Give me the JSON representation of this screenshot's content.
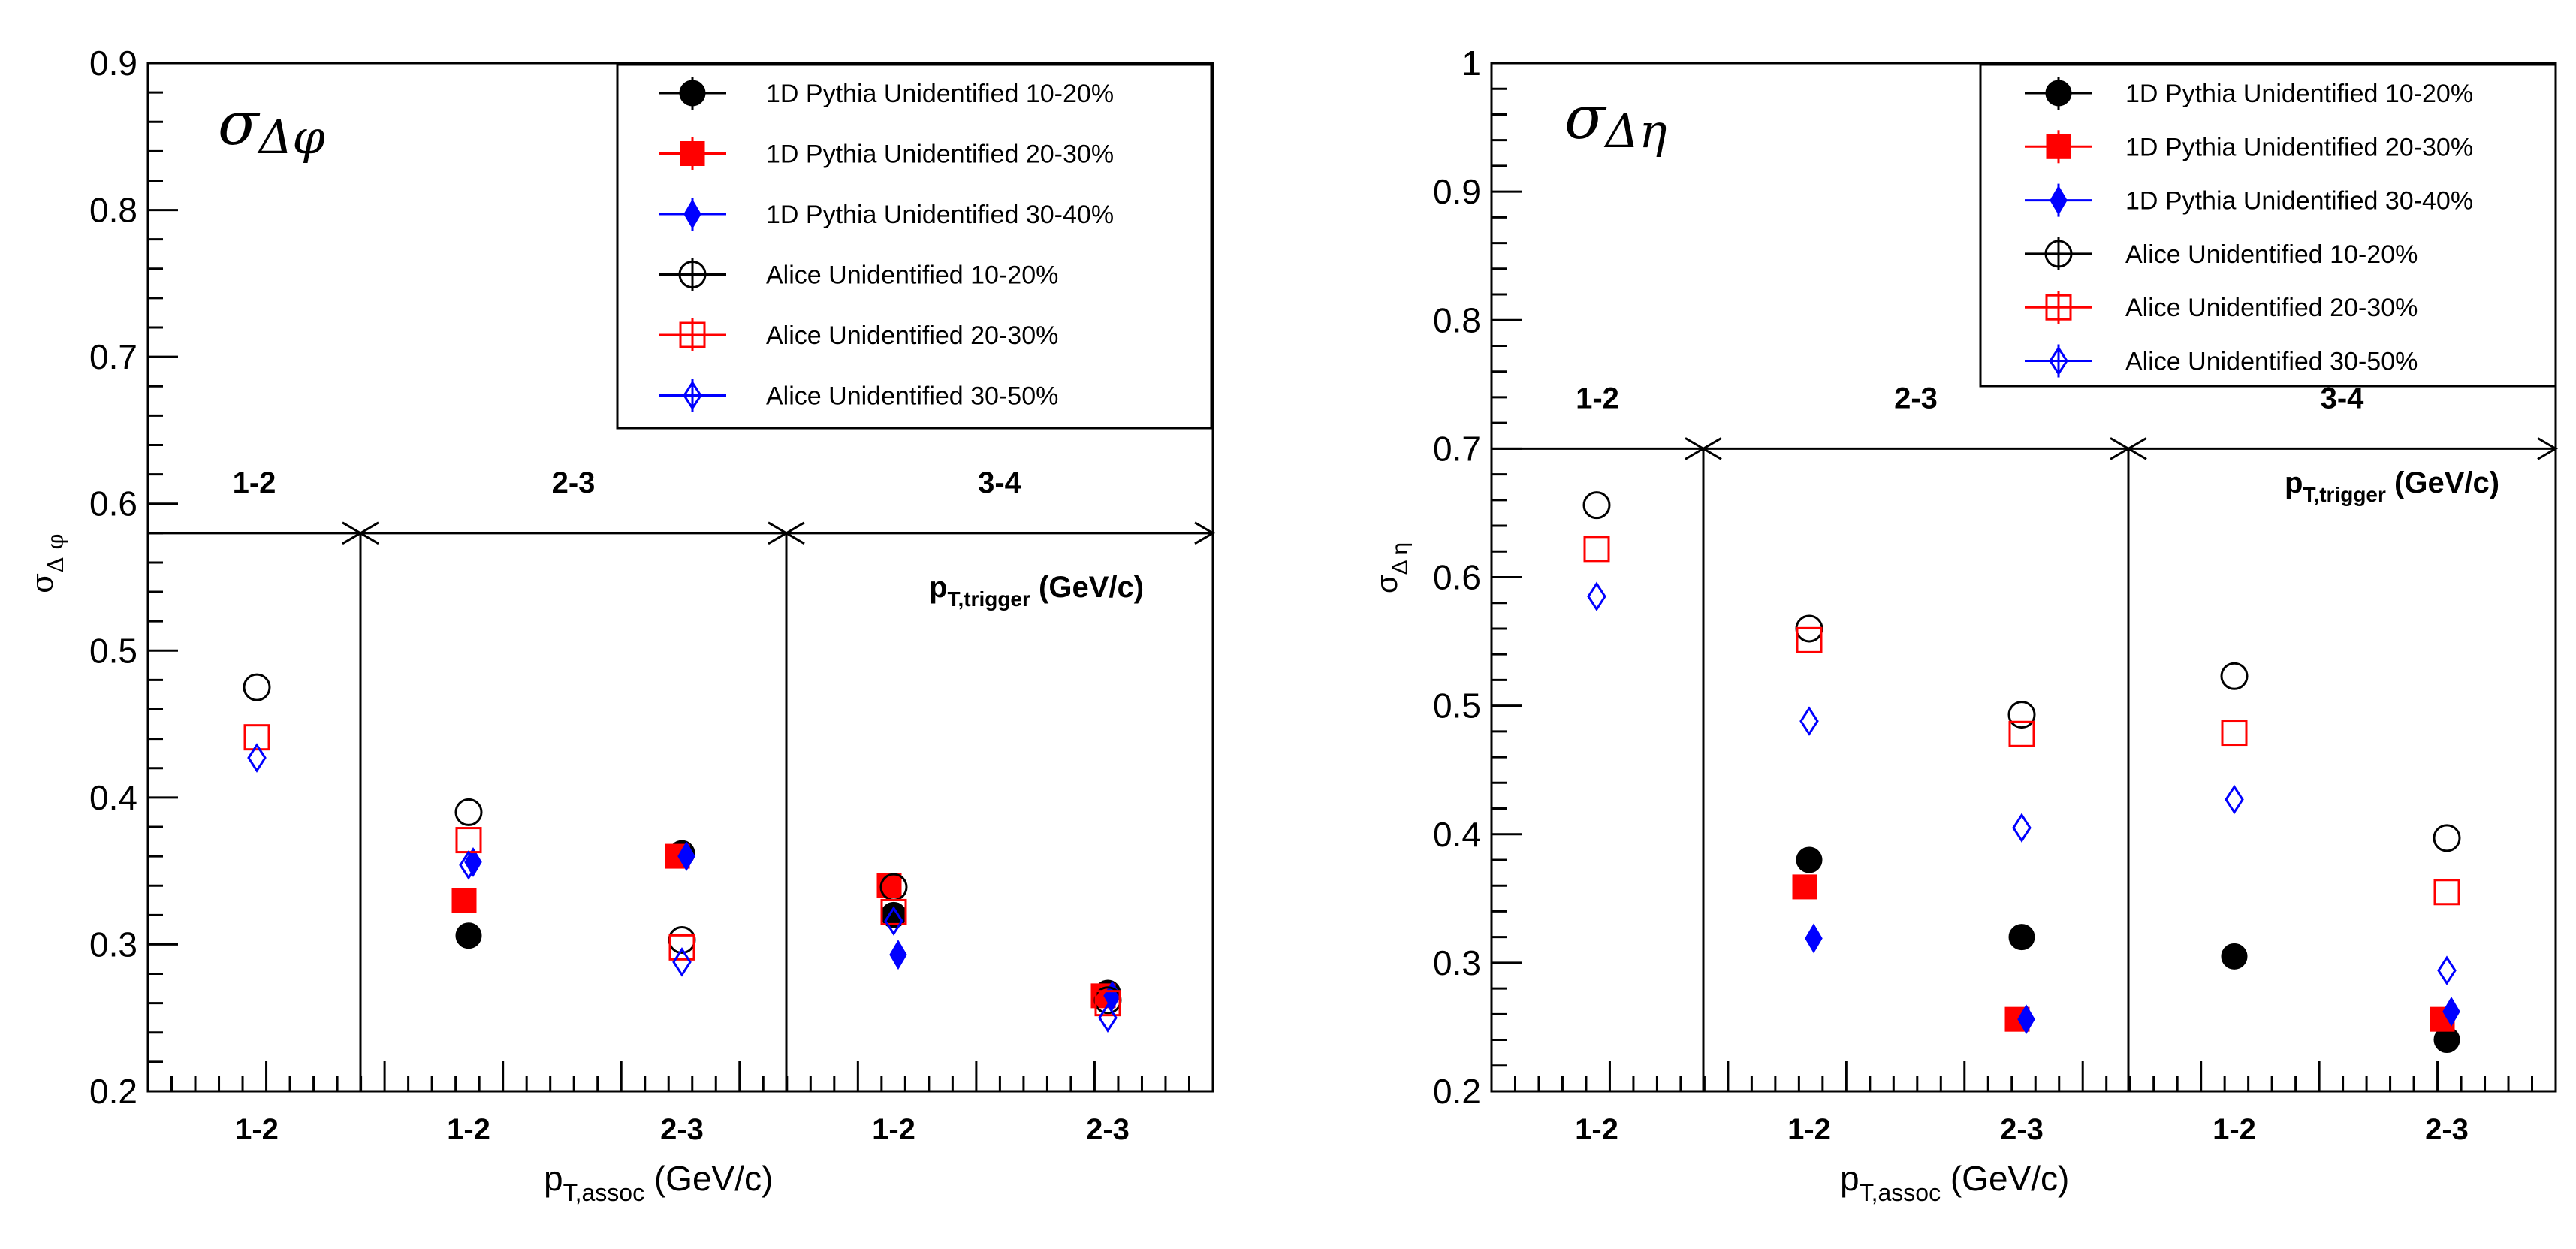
{
  "chart_data": [
    {
      "id": "left",
      "type": "scatter",
      "title": "σ",
      "title_sub": "Δφ",
      "ylabel": "σ",
      "ylabel_sub": "Δ φ",
      "xlabel": "p",
      "xlabel_sub": "T,assoc",
      "xlabel_unit": " (GeV/c)",
      "ylim": [
        0.2,
        0.9
      ],
      "yticks": [
        "0.2",
        "0.3",
        "0.4",
        "0.5",
        "0.6",
        "0.7",
        "0.8",
        "0.9"
      ],
      "trigger_value": 0.58,
      "trigger_label": "p",
      "trigger_label_sub": "T,trigger",
      "trigger_label_unit": " (GeV/c)",
      "groups": [
        {
          "label": "1-2",
          "assoc": [
            "1-2"
          ]
        },
        {
          "label": "2-3",
          "assoc": [
            "1-2",
            "2-3"
          ]
        },
        {
          "label": "3-4",
          "assoc": [
            "1-2",
            "2-3"
          ]
        }
      ],
      "categories": [
        "1-2 / 1-2",
        "2-3 / 1-2",
        "2-3 / 2-3",
        "3-4 / 1-2",
        "3-4 / 2-3"
      ],
      "x_tick_labels": [
        "1-2",
        "1-2",
        "2-3",
        "1-2",
        "2-3"
      ],
      "legend": [
        "1D Pythia Unidentified 10-20%",
        "1D Pythia Unidentified 20-30%",
        "1D Pythia Unidentified 30-40%",
        "Alice Unidentified 10-20%",
        "Alice Unidentified 20-30%",
        "Alice Unidentified 30-50%"
      ],
      "series": [
        {
          "name": "1D Pythia Unidentified 10-20%",
          "marker": "filled-circle",
          "color": "#000000",
          "values": [
            null,
            0.306,
            0.362,
            0.32,
            0.267
          ]
        },
        {
          "name": "1D Pythia Unidentified 20-30%",
          "marker": "filled-square",
          "color": "#ff0000",
          "values": [
            null,
            0.33,
            0.36,
            0.34,
            0.265
          ]
        },
        {
          "name": "1D Pythia Unidentified 30-40%",
          "marker": "filled-diamond",
          "color": "#0000ff",
          "values": [
            null,
            0.356,
            0.36,
            0.293,
            0.265
          ]
        },
        {
          "name": "Alice Unidentified 10-20%",
          "marker": "open-circle",
          "color": "#000000",
          "values": [
            0.475,
            0.39,
            0.303,
            0.339,
            0.262
          ]
        },
        {
          "name": "Alice Unidentified 20-30%",
          "marker": "open-square",
          "color": "#ff0000",
          "values": [
            0.441,
            0.371,
            0.298,
            0.322,
            0.26
          ]
        },
        {
          "name": "Alice Unidentified 30-50%",
          "marker": "open-diamond",
          "color": "#0000ff",
          "values": [
            0.427,
            0.354,
            0.288,
            0.316,
            0.25
          ]
        }
      ]
    },
    {
      "id": "right",
      "type": "scatter",
      "title": "σ",
      "title_sub": "Δη",
      "ylabel": "σ",
      "ylabel_sub": "Δ η",
      "xlabel": "p",
      "xlabel_sub": "T,assoc",
      "xlabel_unit": " (GeV/c)",
      "ylim": [
        0.2,
        1.0
      ],
      "yticks": [
        "0.2",
        "0.3",
        "0.4",
        "0.5",
        "0.6",
        "0.7",
        "0.8",
        "0.9",
        "1"
      ],
      "trigger_value": 0.7,
      "trigger_label": "p",
      "trigger_label_sub": "T,trigger",
      "trigger_label_unit": " (GeV/c)",
      "groups": [
        {
          "label": "1-2",
          "assoc": [
            "1-2"
          ]
        },
        {
          "label": "2-3",
          "assoc": [
            "1-2",
            "2-3"
          ]
        },
        {
          "label": "3-4",
          "assoc": [
            "1-2",
            "2-3"
          ]
        }
      ],
      "categories": [
        "1-2 / 1-2",
        "2-3 / 1-2",
        "2-3 / 2-3",
        "3-4 / 1-2",
        "3-4 / 2-3"
      ],
      "x_tick_labels": [
        "1-2",
        "1-2",
        "2-3",
        "1-2",
        "2-3"
      ],
      "legend": [
        "1D Pythia Unidentified 10-20%",
        "1D Pythia Unidentified 20-30%",
        "1D Pythia Unidentified 30-40%",
        "Alice Unidentified 10-20%",
        "Alice Unidentified 20-30%",
        "Alice Unidentified 30-50%"
      ],
      "series": [
        {
          "name": "1D Pythia Unidentified 10-20%",
          "marker": "filled-circle",
          "color": "#000000",
          "values": [
            null,
            0.38,
            0.32,
            0.305,
            0.24
          ]
        },
        {
          "name": "1D Pythia Unidentified 20-30%",
          "marker": "filled-square",
          "color": "#ff0000",
          "values": [
            null,
            0.359,
            0.256,
            null,
            0.256
          ]
        },
        {
          "name": "1D Pythia Unidentified 30-40%",
          "marker": "filled-diamond",
          "color": "#0000ff",
          "values": [
            null,
            0.319,
            0.256,
            null,
            0.262
          ]
        },
        {
          "name": "Alice Unidentified 10-20%",
          "marker": "open-circle",
          "color": "#000000",
          "values": [
            0.656,
            0.56,
            0.493,
            0.523,
            0.397
          ]
        },
        {
          "name": "Alice Unidentified 20-30%",
          "marker": "open-square",
          "color": "#ff0000",
          "values": [
            0.622,
            0.551,
            0.478,
            0.479,
            0.355
          ]
        },
        {
          "name": "Alice Unidentified 30-50%",
          "marker": "open-diamond",
          "color": "#0000ff",
          "values": [
            0.585,
            0.488,
            0.405,
            0.427,
            0.294
          ]
        }
      ]
    }
  ]
}
